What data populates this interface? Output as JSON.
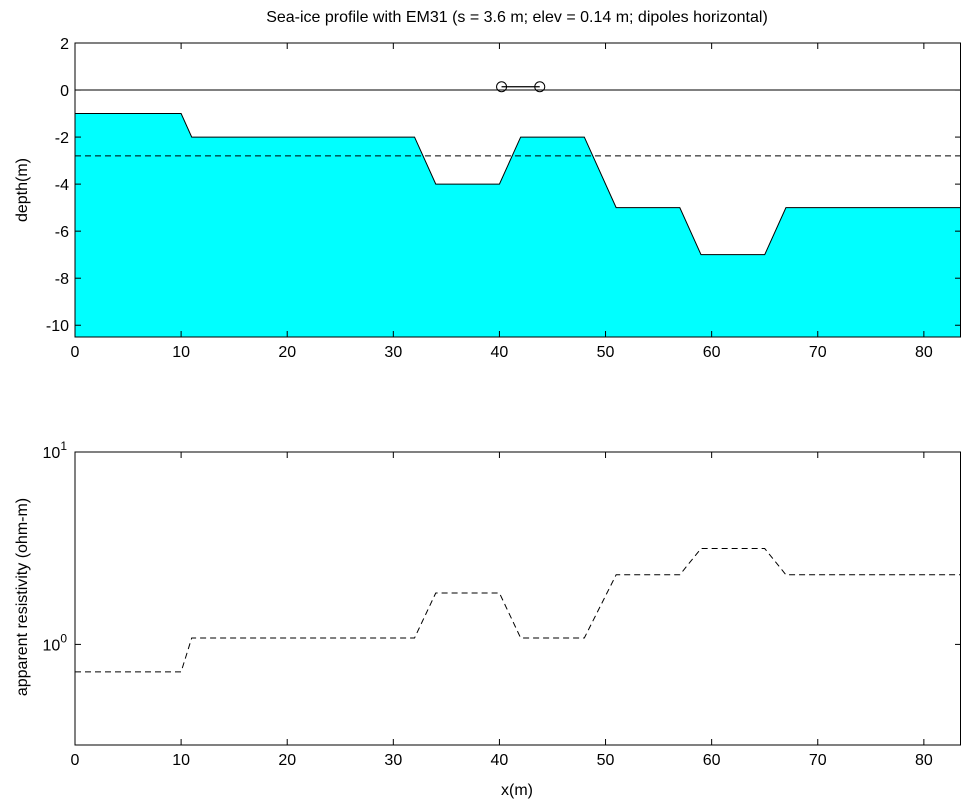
{
  "colors": {
    "ice_fill": "#00ffff",
    "line": "#000000",
    "background": "#ffffff"
  },
  "chart_data": [
    {
      "type": "area",
      "title": "Sea-ice profile with EM31 (s = 3.6 m; elev = 0.14 m; dipoles horizontal)",
      "xlabel": "",
      "ylabel": "depth(m)",
      "xlim": [
        0,
        83.5
      ],
      "ylim": [
        -10.5,
        2
      ],
      "xticks": [
        "0",
        "10",
        "20",
        "30",
        "40",
        "50",
        "60",
        "70",
        "80"
      ],
      "yticks": [
        "2",
        "0",
        "-2",
        "-4",
        "-6",
        "-8",
        "-10"
      ],
      "grid": false,
      "series": [
        {
          "style": "filled",
          "x": [
            0,
            10,
            11,
            32,
            34,
            40,
            42,
            48,
            51,
            57,
            59,
            65,
            67,
            83.5
          ],
          "y": [
            -1,
            -1,
            -2,
            -2,
            -4,
            -4,
            -2,
            -2,
            -5,
            -5,
            -7,
            -7,
            -5,
            -5
          ]
        },
        {
          "style": "solid",
          "x": [
            0,
            83.5
          ],
          "y": [
            0,
            0
          ]
        },
        {
          "style": "dashed",
          "x": [
            0,
            83.5
          ],
          "y": [
            -2.8,
            -2.8
          ]
        },
        {
          "style": "marker-circle",
          "x": [
            40.2,
            43.8
          ],
          "y": [
            0.14,
            0.14
          ]
        }
      ]
    },
    {
      "type": "line",
      "title": "",
      "xlabel": "x(m)",
      "ylabel": "apparent resistivity (ohm-m)",
      "xlim": [
        0,
        83.5
      ],
      "ylim": [
        0.3,
        10
      ],
      "yscale": "log",
      "xticks": [
        "0",
        "10",
        "20",
        "30",
        "40",
        "50",
        "60",
        "70",
        "80"
      ],
      "yticks": [
        {
          "base": "10",
          "exp": "1"
        },
        {
          "base": "10",
          "exp": "0"
        }
      ],
      "grid": false,
      "series": [
        {
          "style": "dashed",
          "x": [
            0,
            10,
            11,
            32,
            34,
            40,
            42,
            48,
            51,
            57,
            59,
            65,
            67,
            83.5
          ],
          "y": [
            0.72,
            0.72,
            1.08,
            1.08,
            1.85,
            1.85,
            1.08,
            1.08,
            2.3,
            2.3,
            3.15,
            3.15,
            2.3,
            2.3
          ]
        }
      ]
    }
  ]
}
